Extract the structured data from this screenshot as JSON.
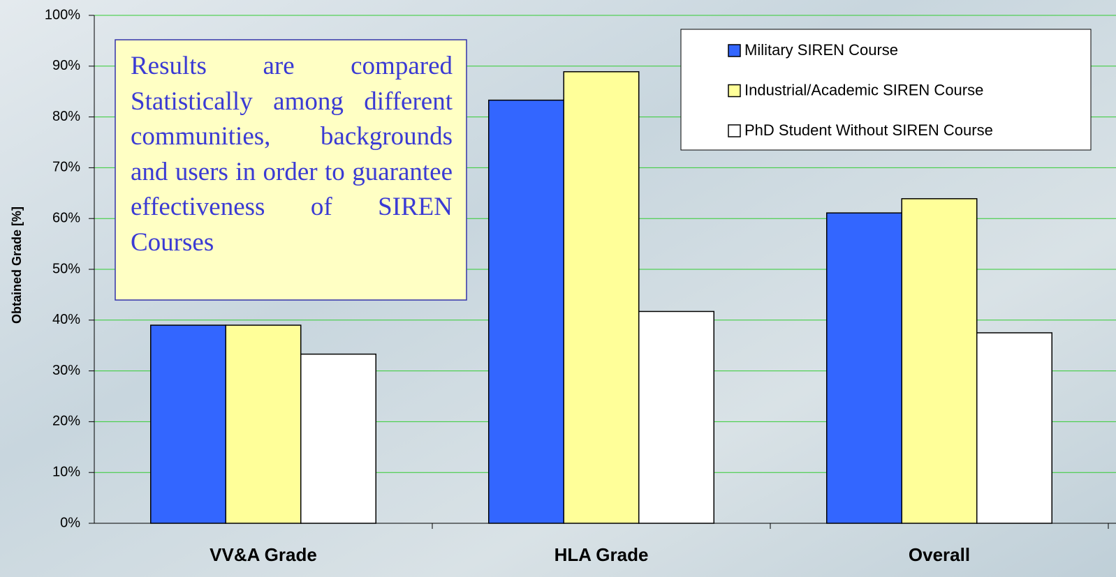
{
  "chart_data": {
    "type": "bar",
    "y_axis_label": "Obtained Grade [%]",
    "annotation": "Results are compared Statistically among different communities, backgrounds and users in order to guarantee effectiveness of SIREN Courses",
    "categories": [
      "VV&A Grade",
      "HLA Grade",
      "Overall"
    ],
    "series": [
      {
        "name": "Military SIREN Course",
        "color": "#3366ff",
        "values": [
          39,
          83.3,
          61.1
        ]
      },
      {
        "name": "Industrial/Academic SIREN Course",
        "color": "#ffff99",
        "values": [
          39,
          88.9,
          63.9
        ]
      },
      {
        "name": "PhD Student Without SIREN Course",
        "color": "#ffffff",
        "values": [
          33.3,
          41.7,
          37.5
        ]
      }
    ],
    "ylim": [
      0,
      100
    ],
    "yticks": [
      {
        "value": 0,
        "label": "0%"
      },
      {
        "value": 10,
        "label": "10%"
      },
      {
        "value": 20,
        "label": "20%"
      },
      {
        "value": 30,
        "label": "30%"
      },
      {
        "value": 40,
        "label": "40%"
      },
      {
        "value": 50,
        "label": "50%"
      },
      {
        "value": 60,
        "label": "60%"
      },
      {
        "value": 70,
        "label": "70%"
      },
      {
        "value": 80,
        "label": "80%"
      },
      {
        "value": 90,
        "label": "90%"
      },
      {
        "value": 100,
        "label": "100%"
      }
    ],
    "grid": true,
    "grid_color": "#33cc33",
    "legend": "top-right"
  }
}
